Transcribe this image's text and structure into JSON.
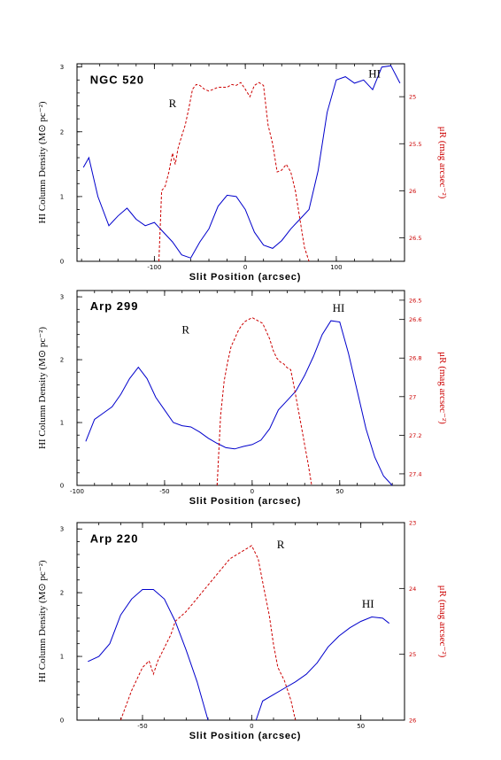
{
  "chart_data": [
    {
      "type": "line",
      "title": "NGC 520",
      "xlabel": "Slit Position (arcsec)",
      "ylabel": "HI Column Density (M⊙ pc⁻²)",
      "ylabel_right": "μR (mag arcsec⁻²)",
      "xlim": [
        -185,
        175
      ],
      "ylim": [
        0,
        3.05
      ],
      "ylim_right": [
        26.75,
        24.65
      ],
      "x_ticks": [
        -100,
        0,
        100
      ],
      "x_tick_labels": [
        "-100",
        "0",
        "100"
      ],
      "y_ticks": [
        0,
        1,
        2,
        3
      ],
      "y_tick_labels": [
        "0",
        "1",
        "2",
        "3"
      ],
      "y_ticks_right": [
        25,
        25.5,
        26,
        26.5
      ],
      "y_tick_labels_right": [
        "25",
        "25.5",
        "26",
        "26.5"
      ],
      "grid": false,
      "series": [
        {
          "name": "HI",
          "color": "#0000cc",
          "dash": "solid",
          "axis": "left",
          "x": [
            -178,
            -172,
            -162,
            -150,
            -140,
            -130,
            -120,
            -110,
            -100,
            -90,
            -80,
            -70,
            -60,
            -50,
            -40,
            -30,
            -20,
            -10,
            0,
            10,
            20,
            30,
            40,
            50,
            60,
            70,
            80,
            90,
            100,
            110,
            120,
            130,
            140,
            150,
            160,
            170
          ],
          "y": [
            1.45,
            1.6,
            1.0,
            0.55,
            0.7,
            0.82,
            0.65,
            0.55,
            0.6,
            0.45,
            0.3,
            0.1,
            0.05,
            0.3,
            0.5,
            0.85,
            1.02,
            1.0,
            0.8,
            0.45,
            0.25,
            0.2,
            0.32,
            0.5,
            0.65,
            0.8,
            1.4,
            2.3,
            2.8,
            2.85,
            2.75,
            2.8,
            2.65,
            3.0,
            3.02,
            2.75
          ]
        },
        {
          "name": "R",
          "color": "#cc0000",
          "dash": "dashed",
          "axis": "right",
          "x": [
            -95,
            -92,
            -88,
            -84,
            -80,
            -77,
            -74,
            -70,
            -66,
            -62,
            -58,
            -54,
            -50,
            -45,
            -40,
            -35,
            -30,
            -25,
            -20,
            -15,
            -10,
            -5,
            0,
            5,
            10,
            15,
            20,
            25,
            30,
            35,
            40,
            45,
            50,
            55,
            60,
            65,
            70
          ],
          "y": [
            26.75,
            26.0,
            25.95,
            25.8,
            25.6,
            25.72,
            25.55,
            25.42,
            25.3,
            25.12,
            24.92,
            24.87,
            24.88,
            24.92,
            24.94,
            24.92,
            24.9,
            24.9,
            24.9,
            24.87,
            24.88,
            24.85,
            24.92,
            25.0,
            24.88,
            24.85,
            24.88,
            25.3,
            25.5,
            25.8,
            25.78,
            25.72,
            25.8,
            26.0,
            26.3,
            26.6,
            26.75
          ]
        }
      ]
    },
    {
      "type": "line",
      "title": "Arp 299",
      "xlabel": "Slit Position (arcsec)",
      "ylabel": "HI Column Density (M⊙ pc⁻²)",
      "ylabel_right": "μR (mag arcsec⁻²)",
      "xlim": [
        -100,
        87
      ],
      "ylim": [
        0,
        3.1
      ],
      "ylim_right": [
        27.46,
        26.45
      ],
      "x_ticks": [
        -100,
        -50,
        0,
        50
      ],
      "x_tick_labels": [
        "-100",
        "-50",
        "0",
        "50"
      ],
      "y_ticks": [
        0,
        1,
        2,
        3
      ],
      "y_tick_labels": [
        "0",
        "1",
        "2",
        "3"
      ],
      "y_ticks_right": [
        26.5,
        26.6,
        26.8,
        27,
        27.2,
        27.4
      ],
      "y_tick_labels_right": [
        "26.5",
        "26.6",
        "26.8",
        "27",
        "27.2",
        "27.4"
      ],
      "grid": false,
      "series": [
        {
          "name": "HI",
          "color": "#0000cc",
          "dash": "solid",
          "axis": "left",
          "x": [
            -95,
            -90,
            -85,
            -80,
            -75,
            -70,
            -65,
            -60,
            -55,
            -50,
            -45,
            -40,
            -35,
            -30,
            -25,
            -20,
            -15,
            -10,
            -5,
            0,
            5,
            10,
            15,
            20,
            25,
            30,
            35,
            40,
            45,
            50,
            55,
            60,
            65,
            70,
            75,
            80
          ],
          "y": [
            0.7,
            1.05,
            1.15,
            1.25,
            1.45,
            1.7,
            1.88,
            1.7,
            1.4,
            1.2,
            1.0,
            0.95,
            0.93,
            0.85,
            0.75,
            0.67,
            0.6,
            0.58,
            0.62,
            0.65,
            0.72,
            0.9,
            1.2,
            1.35,
            1.5,
            1.75,
            2.05,
            2.4,
            2.62,
            2.6,
            2.1,
            1.5,
            0.9,
            0.45,
            0.15,
            0.0
          ]
        },
        {
          "name": "R",
          "color": "#cc0000",
          "dash": "dashed",
          "axis": "right",
          "x": [
            -20,
            -18,
            -16,
            -14,
            -12,
            -10,
            -8,
            -6,
            -4,
            -2,
            0,
            2,
            4,
            6,
            8,
            10,
            12,
            14,
            16,
            18,
            20,
            22,
            24,
            26,
            28,
            30,
            32,
            34
          ],
          "y": [
            27.46,
            27.1,
            26.92,
            26.82,
            26.74,
            26.7,
            26.66,
            26.63,
            26.61,
            26.6,
            26.59,
            26.6,
            26.61,
            26.62,
            26.66,
            26.7,
            26.76,
            26.8,
            26.82,
            26.83,
            26.85,
            26.86,
            26.95,
            27.05,
            27.15,
            27.25,
            27.35,
            27.46
          ]
        }
      ]
    },
    {
      "type": "line",
      "title": "Arp 220",
      "xlabel": "Slit Position (arcsec)",
      "ylabel": "HI Column Density (M⊙ pc⁻²)",
      "ylabel_right": "μR (mag arcsec⁻²)",
      "xlim": [
        -80,
        70
      ],
      "ylim": [
        0,
        3.1
      ],
      "ylim_right": [
        26,
        23
      ],
      "x_ticks": [
        -50,
        0,
        50
      ],
      "x_tick_labels": [
        "-50",
        "0",
        "50"
      ],
      "y_ticks": [
        0,
        1,
        2,
        3
      ],
      "y_tick_labels": [
        "0",
        "1",
        "2",
        "3"
      ],
      "y_ticks_right": [
        23,
        24,
        25,
        26
      ],
      "y_tick_labels_right": [
        "23",
        "24",
        "25",
        "26"
      ],
      "grid": false,
      "series": [
        {
          "name": "HI",
          "color": "#0000cc",
          "dash": "solid",
          "axis": "left",
          "x": [
            -75,
            -70,
            -65,
            -60,
            -55,
            -50,
            -45,
            -40,
            -35,
            -30,
            -25,
            -20
          ],
          "y": [
            0.92,
            1.0,
            1.2,
            1.65,
            1.9,
            2.05,
            2.05,
            1.9,
            1.55,
            1.1,
            0.6,
            0.0
          ]
        },
        {
          "name": "HI",
          "color": "#0000cc",
          "dash": "solid",
          "axis": "left",
          "x": [
            2,
            5,
            10,
            15,
            20,
            25,
            30,
            35,
            40,
            45,
            50,
            55,
            60,
            63
          ],
          "y": [
            0.0,
            0.3,
            0.4,
            0.5,
            0.6,
            0.72,
            0.9,
            1.15,
            1.32,
            1.45,
            1.55,
            1.62,
            1.6,
            1.52
          ]
        },
        {
          "name": "R",
          "color": "#cc0000",
          "dash": "dashed",
          "axis": "right",
          "x": [
            -60,
            -55,
            -50,
            -47,
            -45,
            -43,
            -40,
            -37,
            -35,
            -30,
            -25,
            -20,
            -15,
            -10,
            -5,
            0,
            3,
            5,
            8,
            10,
            12,
            15,
            18,
            20
          ],
          "y": [
            26.0,
            25.55,
            25.2,
            25.1,
            25.3,
            25.1,
            24.9,
            24.7,
            24.5,
            24.35,
            24.15,
            23.95,
            23.75,
            23.55,
            23.45,
            23.35,
            23.55,
            23.9,
            24.4,
            24.85,
            25.2,
            25.4,
            25.7,
            26.0
          ]
        }
      ]
    }
  ]
}
